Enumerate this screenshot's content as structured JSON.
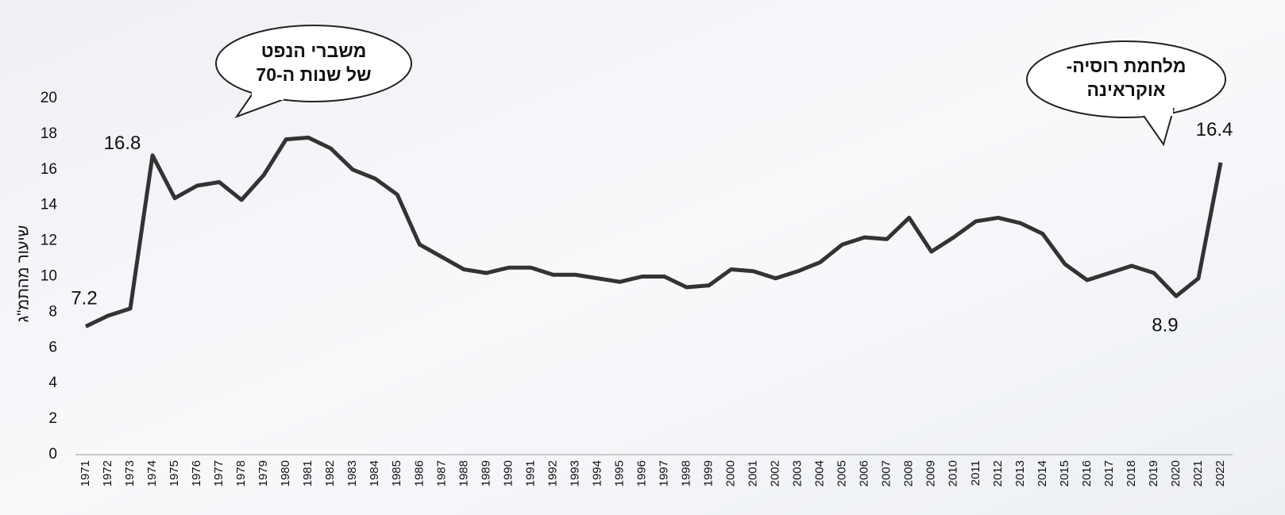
{
  "chart_data": {
    "type": "line",
    "y_label": "שיעור מהתמ\"ג",
    "categories": [
      "1971",
      "1972",
      "1973",
      "1974",
      "1975",
      "1976",
      "1977",
      "1978",
      "1979",
      "1980",
      "1981",
      "1982",
      "1983",
      "1984",
      "1985",
      "1986",
      "1987",
      "1988",
      "1989",
      "1990",
      "1991",
      "1992",
      "1993",
      "1994",
      "1995",
      "1996",
      "1997",
      "1998",
      "1999",
      "2000",
      "2001",
      "2002",
      "2003",
      "2004",
      "2005",
      "2006",
      "2007",
      "2008",
      "2009",
      "2010",
      "2011",
      "2012",
      "2013",
      "2014",
      "2015",
      "2016",
      "2017",
      "2018",
      "2019",
      "2020",
      "2021",
      "2022"
    ],
    "series": [
      {
        "color": "#333333",
        "values": [
          7.2,
          7.8,
          8.2,
          16.8,
          14.4,
          15.1,
          15.3,
          14.3,
          15.7,
          17.7,
          17.8,
          17.2,
          16.0,
          15.5,
          14.6,
          11.8,
          11.1,
          10.4,
          10.2,
          10.5,
          10.5,
          10.1,
          10.1,
          9.9,
          9.7,
          10.0,
          10.0,
          9.4,
          9.5,
          10.4,
          10.3,
          9.9,
          10.3,
          10.8,
          11.8,
          12.2,
          12.1,
          13.3,
          11.4,
          12.2,
          13.1,
          13.3,
          13.0,
          12.4,
          10.7,
          9.8,
          10.2,
          10.6,
          10.2,
          8.9,
          9.9,
          16.4
        ]
      }
    ],
    "labeled_indices": [
      0,
      3,
      49,
      51
    ],
    "ylim": [
      0,
      20
    ],
    "yticks": [
      0,
      2,
      4,
      6,
      8,
      10,
      12,
      14,
      16,
      18,
      20
    ],
    "annotations": [
      {
        "lines": [
          "משברי הנפט",
          "של שנות ה-70"
        ]
      },
      {
        "lines": [
          "מלחמת רוסיה-",
          "אוקראינה"
        ]
      }
    ]
  }
}
